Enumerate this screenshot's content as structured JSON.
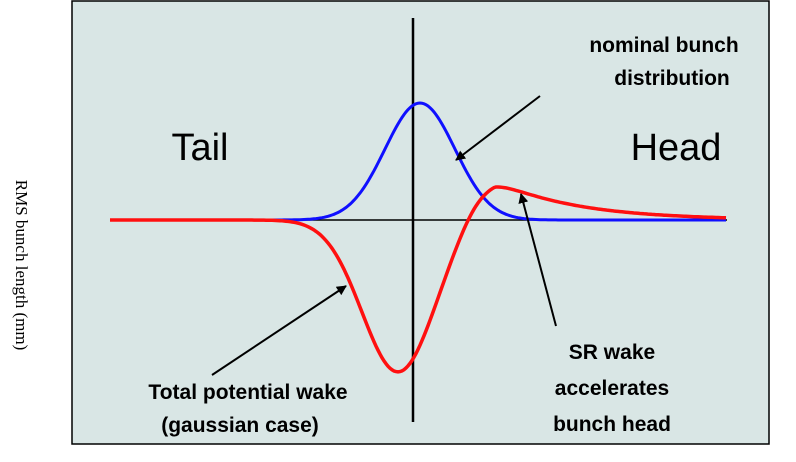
{
  "axis_label": "RMS bunch length (mm)",
  "labels": {
    "tail": "Tail",
    "head": "Head",
    "distribution": [
      "nominal bunch",
      "distribution"
    ],
    "sr_wake": [
      "SR wake",
      "accelerates",
      "bunch head"
    ],
    "total_wake": [
      "Total potential wake",
      "(gaussian case)"
    ]
  }
}
